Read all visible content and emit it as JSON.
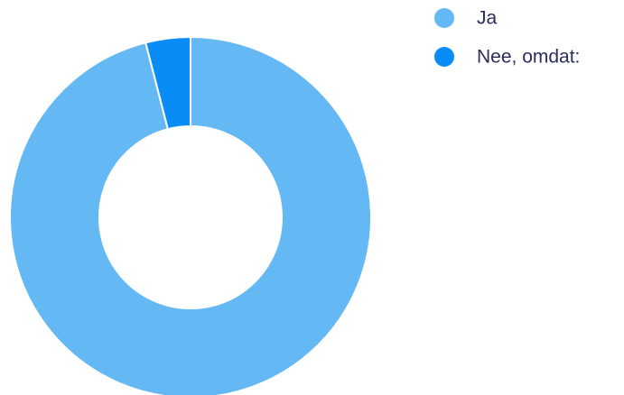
{
  "chart_data": {
    "type": "donut",
    "series": [
      {
        "name": "Ja",
        "color": "#64b9f5",
        "values": [
          96
        ]
      },
      {
        "name": "Nee, omdat:",
        "color": "#0a8cf7",
        "values": [
          4
        ]
      }
    ]
  }
}
